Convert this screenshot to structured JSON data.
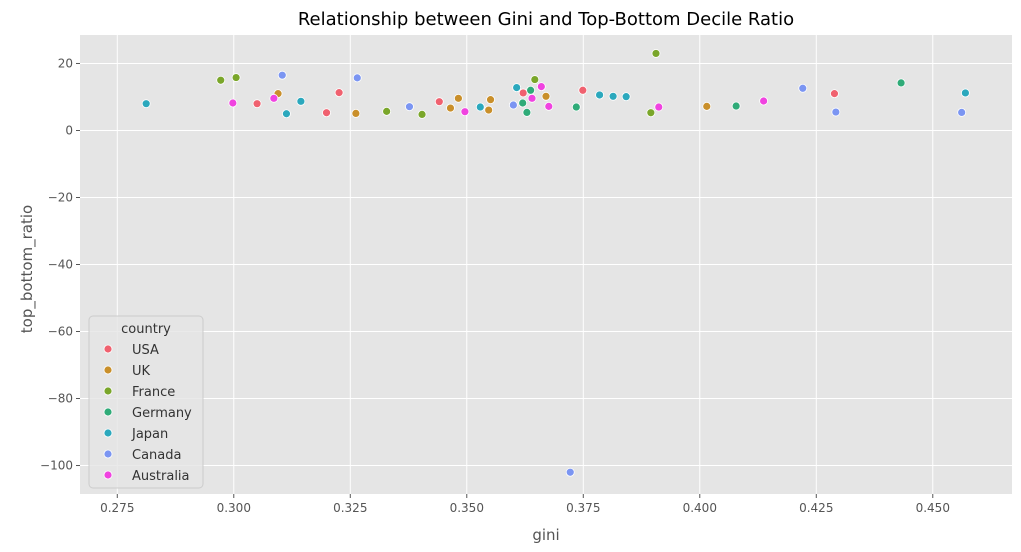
{
  "chart_data": {
    "type": "scatter",
    "title": "Relationship between Gini and Top-Bottom Decile Ratio",
    "xlabel": "gini",
    "ylabel": "top_bottom_ratio",
    "xlim": [
      0.267,
      0.467
    ],
    "ylim": [
      -108.5,
      28.5
    ],
    "xticks": [
      0.275,
      0.3,
      0.325,
      0.35,
      0.375,
      0.4,
      0.425,
      0.45
    ],
    "xtick_labels": [
      "0.275",
      "0.300",
      "0.325",
      "0.350",
      "0.375",
      "0.400",
      "0.425",
      "0.450"
    ],
    "yticks": [
      -100,
      -80,
      -60,
      -40,
      -20,
      0,
      20
    ],
    "ytick_labels": [
      "−100",
      "−80",
      "−60",
      "−40",
      "−20",
      "0",
      "20"
    ],
    "grid": true,
    "legend": {
      "title": "country",
      "placement": "lower-left"
    },
    "colors": {
      "background": "#e5e5e5",
      "grid": "#ffffff",
      "USA": "#f0616f",
      "UK": "#c98f2a",
      "France": "#7aa62a",
      "Germany": "#2fab78",
      "Japan": "#2ba8bd",
      "Canada": "#7b95f2",
      "Australia": "#f043e0"
    },
    "series": [
      {
        "name": "USA",
        "points": [
          [
            0.305,
            8
          ],
          [
            0.3199,
            5.3
          ],
          [
            0.3226,
            11.3
          ],
          [
            0.3441,
            8.6
          ],
          [
            0.3621,
            11.2
          ],
          [
            0.3749,
            12
          ],
          [
            0.4289,
            11
          ]
        ]
      },
      {
        "name": "UK",
        "points": [
          [
            0.3095,
            11
          ],
          [
            0.3262,
            5.1
          ],
          [
            0.3465,
            6.7
          ],
          [
            0.3482,
            9.6
          ],
          [
            0.3547,
            6.1
          ],
          [
            0.3551,
            9.2
          ],
          [
            0.367,
            10.2
          ],
          [
            0.4015,
            7.2
          ]
        ]
      },
      {
        "name": "France",
        "points": [
          [
            0.2972,
            15
          ],
          [
            0.3005,
            15.8
          ],
          [
            0.3328,
            5.7
          ],
          [
            0.3404,
            4.8
          ],
          [
            0.3646,
            15.2
          ],
          [
            0.3895,
            5.3
          ],
          [
            0.3906,
            23
          ]
        ]
      },
      {
        "name": "Germany",
        "points": [
          [
            0.362,
            8.2
          ],
          [
            0.3637,
            12
          ],
          [
            0.3629,
            5.4
          ],
          [
            0.3735,
            7
          ],
          [
            0.4078,
            7.3
          ],
          [
            0.4432,
            14.2
          ]
        ]
      },
      {
        "name": "Japan",
        "points": [
          [
            0.2812,
            8
          ],
          [
            0.3113,
            5
          ],
          [
            0.3144,
            8.7
          ],
          [
            0.3529,
            7
          ],
          [
            0.3607,
            12.8
          ],
          [
            0.3785,
            10.6
          ],
          [
            0.3814,
            10.2
          ],
          [
            0.3842,
            10.1
          ],
          [
            0.457,
            11.2
          ]
        ]
      },
      {
        "name": "Canada",
        "points": [
          [
            0.3104,
            16.5
          ],
          [
            0.3265,
            15.7
          ],
          [
            0.3377,
            7.1
          ],
          [
            0.36,
            7.6
          ],
          [
            0.3722,
            -102
          ],
          [
            0.4221,
            12.6
          ],
          [
            0.4292,
            5.5
          ],
          [
            0.4562,
            5.4
          ]
        ]
      },
      {
        "name": "Australia",
        "points": [
          [
            0.2998,
            8.2
          ],
          [
            0.3086,
            9.6
          ],
          [
            0.3496,
            5.6
          ],
          [
            0.364,
            9.6
          ],
          [
            0.366,
            13.1
          ],
          [
            0.3676,
            7.2
          ],
          [
            0.3912,
            7
          ],
          [
            0.4137,
            8.8
          ]
        ]
      }
    ]
  }
}
